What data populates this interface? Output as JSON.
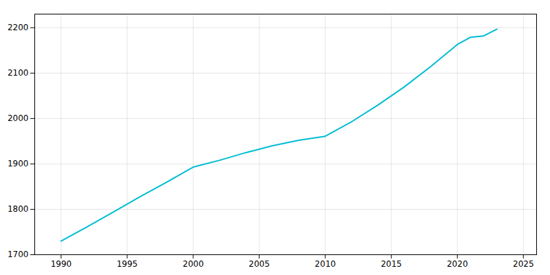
{
  "chart_data": {
    "type": "line",
    "x": [
      1990,
      1992,
      1994,
      1996,
      1998,
      2000,
      2002,
      2004,
      2006,
      2008,
      2010,
      2012,
      2014,
      2016,
      2018,
      2020,
      2021,
      2022,
      2023
    ],
    "values": [
      1730,
      1762,
      1795,
      1828,
      1860,
      1893,
      1908,
      1925,
      1940,
      1952,
      1961,
      1993,
      2030,
      2070,
      2115,
      2163,
      2179,
      2182,
      2197
    ],
    "color": "#00bcd4",
    "xlim": [
      1988,
      2026
    ],
    "ylim": [
      1700,
      2230
    ],
    "xticks": [
      1990,
      1995,
      2000,
      2005,
      2010,
      2015,
      2020,
      2025
    ],
    "yticks": [
      1700,
      1800,
      1900,
      2000,
      2100,
      2200
    ],
    "grid": true
  }
}
